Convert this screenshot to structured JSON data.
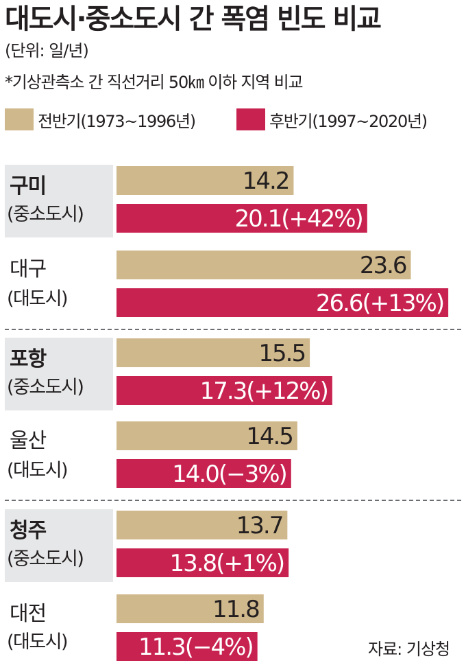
{
  "title": "대도시·중소도시 간 폭염 빈도 비교",
  "unit": "(단위: 일/년)",
  "note": "*기상관측소 간 직선거리 50㎞ 이하 지역 비교",
  "legend": [
    {
      "label": "전반기(1973~1996년)",
      "color": "#cfb88b"
    },
    {
      "label": "후반기(1997~2020년)",
      "color": "#c82350"
    }
  ],
  "source": "자료: 기상청",
  "chart_data": {
    "type": "bar",
    "orientation": "horizontal",
    "title": "대도시·중소도시 간 폭염 빈도 비교",
    "unit": "일/년",
    "categories": [
      "구미",
      "대구",
      "포항",
      "울산",
      "청주",
      "대전"
    ],
    "city_types": [
      "(중소도시)",
      "(대도시)",
      "(중소도시)",
      "(대도시)",
      "(중소도시)",
      "(대도시)"
    ],
    "series": [
      {
        "name": "전반기(1973~1996년)",
        "color": "#cfb88b",
        "values": [
          14.2,
          23.6,
          15.5,
          14.5,
          13.7,
          11.8
        ],
        "labels": [
          "14.2",
          "23.6",
          "15.5",
          "14.5",
          "13.7",
          "11.8"
        ]
      },
      {
        "name": "후반기(1997~2020년)",
        "color": "#c82350",
        "values": [
          20.1,
          26.6,
          17.3,
          14.0,
          13.8,
          11.3
        ],
        "labels": [
          "20.1(+42%)",
          "26.6(+13%)",
          "17.3(+12%)",
          "14.0(−3%)",
          "13.8(+1%)",
          "11.3(−4%)"
        ]
      }
    ],
    "legend_position": "top-left",
    "grid": false
  }
}
